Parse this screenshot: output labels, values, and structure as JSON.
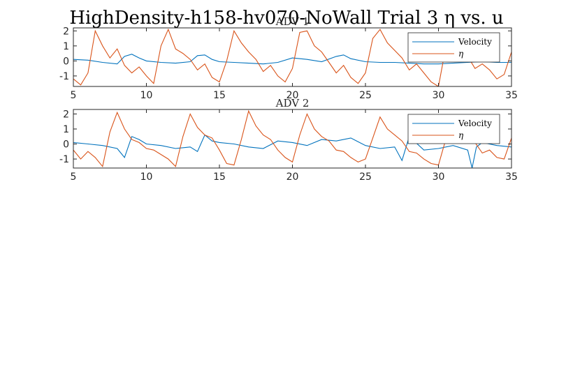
{
  "figure": {
    "suptitle": "HighDensity-h158-hv070-NoWall Trial 3 η vs. u"
  },
  "colors": {
    "velocity": "#0072bd",
    "eta": "#d95319",
    "axis": "#262626"
  },
  "chart_data": [
    {
      "type": "line",
      "title": "ADV 1",
      "xlabel": "",
      "ylabel": "",
      "xlim": [
        5,
        35
      ],
      "ylim": [
        -1.7,
        2.2
      ],
      "xticks": [
        5,
        10,
        15,
        20,
        25,
        30,
        35
      ],
      "yticks": [
        -1,
        0,
        1,
        2
      ],
      "legend_position": "top-right",
      "series": [
        {
          "name": "Velocity",
          "x": [
            5,
            6,
            7,
            8,
            8.5,
            9,
            9.5,
            10,
            11,
            12,
            13,
            13.5,
            14,
            14.5,
            15,
            16,
            17,
            18,
            19,
            20,
            21,
            22,
            23,
            23.5,
            24,
            25,
            26,
            27,
            28,
            29,
            30,
            31,
            32,
            33,
            34,
            35
          ],
          "y": [
            0.1,
            0.05,
            -0.1,
            -0.2,
            0.3,
            0.45,
            0.2,
            0.0,
            -0.1,
            -0.15,
            -0.05,
            0.35,
            0.4,
            0.1,
            -0.05,
            -0.1,
            -0.15,
            -0.2,
            -0.1,
            0.2,
            0.1,
            -0.05,
            0.3,
            0.4,
            0.15,
            -0.05,
            -0.1,
            -0.1,
            -0.15,
            -0.2,
            -0.2,
            -0.15,
            -0.1,
            -0.05,
            -0.1,
            -0.1
          ]
        },
        {
          "name": "η",
          "x": [
            5,
            5.5,
            6,
            6.5,
            7,
            7.5,
            8,
            8.5,
            9,
            9.5,
            10,
            10.5,
            11,
            11.5,
            12,
            12.5,
            13,
            13.5,
            14,
            14.5,
            15,
            15.5,
            16,
            16.5,
            17,
            17.5,
            18,
            18.5,
            19,
            19.5,
            20,
            20.5,
            21,
            21.5,
            22,
            22.5,
            23,
            23.5,
            24,
            24.5,
            25,
            25.5,
            26,
            26.5,
            27,
            27.5,
            28,
            28.5,
            29,
            29.5,
            30,
            30.5,
            31,
            31.5,
            32,
            32.5,
            33,
            33.5,
            34,
            34.5,
            35
          ],
          "y": [
            -1.2,
            -1.6,
            -0.8,
            2.0,
            1.0,
            0.2,
            0.8,
            -0.3,
            -0.8,
            -0.4,
            -1.0,
            -1.5,
            1.0,
            2.1,
            0.8,
            0.5,
            0.1,
            -0.6,
            -0.2,
            -1.1,
            -1.4,
            0.0,
            2.0,
            1.2,
            0.6,
            0.1,
            -0.7,
            -0.3,
            -1.0,
            -1.4,
            -0.5,
            1.9,
            2.0,
            1.0,
            0.6,
            -0.1,
            -0.8,
            -0.3,
            -1.1,
            -1.5,
            -0.8,
            1.5,
            2.1,
            1.2,
            0.7,
            0.2,
            -0.6,
            -0.2,
            -0.8,
            -1.4,
            -1.7,
            0.9,
            1.8,
            0.8,
            0.3,
            -0.5,
            -0.2,
            -0.6,
            -1.2,
            -0.9,
            0.6
          ]
        }
      ]
    },
    {
      "type": "line",
      "title": "ADV 2",
      "xlabel": "",
      "ylabel": "",
      "xlim": [
        5,
        35
      ],
      "ylim": [
        -1.6,
        2.3
      ],
      "xticks": [
        5,
        10,
        15,
        20,
        25,
        30,
        35
      ],
      "yticks": [
        -1,
        0,
        1,
        2
      ],
      "legend_position": "top-right",
      "series": [
        {
          "name": "Velocity",
          "x": [
            5,
            6,
            7,
            8,
            8.5,
            9,
            9.5,
            10,
            11,
            12,
            13,
            13.5,
            14,
            14.5,
            15,
            16,
            17,
            18,
            19,
            20,
            21,
            22,
            23,
            24,
            25,
            26,
            27,
            27.5,
            28,
            29,
            30,
            31,
            32,
            32.3,
            32.6,
            33,
            34,
            35
          ],
          "y": [
            0.1,
            0.0,
            -0.1,
            -0.3,
            -0.9,
            0.5,
            0.3,
            0.0,
            -0.1,
            -0.3,
            -0.2,
            -0.5,
            0.6,
            0.2,
            0.1,
            0.0,
            -0.2,
            -0.3,
            0.2,
            0.1,
            -0.1,
            0.3,
            0.2,
            0.4,
            -0.1,
            -0.3,
            -0.2,
            -1.1,
            0.5,
            -0.4,
            -0.3,
            -0.1,
            -0.4,
            -1.6,
            -0.2,
            0.1,
            -0.1,
            -0.2
          ]
        },
        {
          "name": "η",
          "x": [
            5,
            5.5,
            6,
            6.5,
            7,
            7.5,
            8,
            8.5,
            9,
            9.5,
            10,
            10.5,
            11,
            11.5,
            12,
            12.5,
            13,
            13.5,
            14,
            14.5,
            15,
            15.5,
            16,
            16.5,
            17,
            17.5,
            18,
            18.5,
            19,
            19.5,
            20,
            20.5,
            21,
            21.5,
            22,
            22.5,
            23,
            23.5,
            24,
            24.5,
            25,
            25.5,
            26,
            26.5,
            27,
            27.5,
            28,
            28.5,
            29,
            29.5,
            30,
            30.5,
            31,
            31.5,
            32,
            32.5,
            33,
            33.5,
            34,
            34.5,
            35
          ],
          "y": [
            -0.4,
            -1.0,
            -0.5,
            -0.9,
            -1.5,
            0.8,
            2.1,
            1.0,
            0.3,
            0.1,
            -0.3,
            -0.4,
            -0.7,
            -1.0,
            -1.5,
            0.5,
            2.0,
            1.1,
            0.6,
            0.4,
            -0.4,
            -1.3,
            -1.4,
            0.3,
            2.2,
            1.2,
            0.6,
            0.3,
            -0.4,
            -0.9,
            -1.2,
            0.6,
            2.0,
            1.0,
            0.5,
            0.2,
            -0.4,
            -0.5,
            -0.9,
            -1.2,
            -1.0,
            0.4,
            1.8,
            1.0,
            0.6,
            0.2,
            -0.5,
            -0.6,
            -1.0,
            -1.3,
            -1.4,
            0.3,
            1.7,
            1.0,
            0.5,
            0.1,
            -0.6,
            -0.4,
            -0.9,
            -1.0,
            0.4
          ]
        }
      ]
    }
  ]
}
